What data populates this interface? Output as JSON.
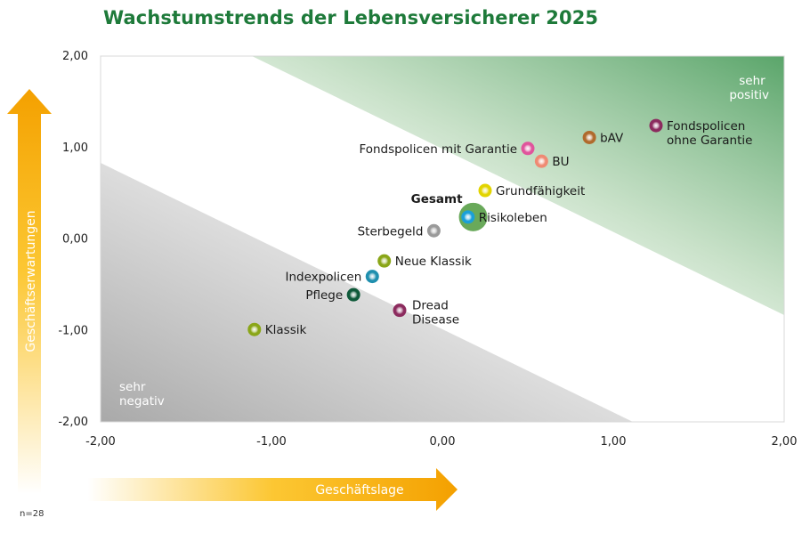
{
  "title": "Wachstumstrends der Lebensversicherer 2025",
  "footnote": "n=28",
  "chart_data": {
    "type": "scatter",
    "title": "Wachstumstrends der Lebensversicherer 2025",
    "xlabel": "Geschäftslage",
    "ylabel": "Geschäftserwartungen",
    "xlim": [
      -2,
      2
    ],
    "ylim": [
      -2,
      2
    ],
    "x_ticks": [
      "-2,00",
      "-1,00",
      "0,00",
      "1,00",
      "2,00"
    ],
    "y_ticks": [
      "2,00",
      "1,00",
      "0,00",
      "-1,00",
      "-2,00"
    ],
    "corner_top_right": [
      "sehr",
      "positiv"
    ],
    "corner_bottom_left": [
      "sehr",
      "negativ"
    ],
    "grid": false,
    "points": [
      {
        "label": [
          "Fondspolicen",
          "ohne Garantie"
        ],
        "x": 1.25,
        "y": 1.24,
        "color": "#8c2b5e",
        "anchor": "right"
      },
      {
        "label": [
          "bAV"
        ],
        "x": 0.86,
        "y": 1.11,
        "color": "#b06a2c",
        "anchor": "right"
      },
      {
        "label": [
          "Fondspolicen mit Garantie"
        ],
        "x": 0.5,
        "y": 0.99,
        "color": "#e0549c",
        "anchor": "left"
      },
      {
        "label": [
          "BU"
        ],
        "x": 0.58,
        "y": 0.85,
        "color": "#ef8a73",
        "anchor": "right"
      },
      {
        "label": [
          "Grundfähigkeit"
        ],
        "x": 0.25,
        "y": 0.53,
        "color": "#e2d400",
        "anchor": "right"
      },
      {
        "label": [
          "Risikoleben"
        ],
        "x": 0.15,
        "y": 0.24,
        "color": "#1aa0d8",
        "anchor": "right"
      },
      {
        "label": [
          "Gesamt"
        ],
        "x": 0.18,
        "y": 0.24,
        "color": "#4f9a3d",
        "anchor": "gesamt",
        "big": true
      },
      {
        "label": [
          "Sterbegeld"
        ],
        "x": -0.05,
        "y": 0.09,
        "color": "#9a9a9a",
        "anchor": "left"
      },
      {
        "label": [
          "Neue Klassik"
        ],
        "x": -0.34,
        "y": -0.24,
        "color": "#8aa618",
        "anchor": "right"
      },
      {
        "label": [
          "Indexpolicen"
        ],
        "x": -0.41,
        "y": -0.41,
        "color": "#1f8fae",
        "anchor": "left"
      },
      {
        "label": [
          "Pflege"
        ],
        "x": -0.52,
        "y": -0.61,
        "color": "#0f5a3a",
        "anchor": "left"
      },
      {
        "label": [
          "Dread",
          "Disease"
        ],
        "x": -0.25,
        "y": -0.78,
        "color": "#8c2b5e",
        "anchor": "below-right"
      },
      {
        "label": [
          "Klassik"
        ],
        "x": -1.1,
        "y": -0.99,
        "color": "#8aa618",
        "anchor": "right"
      }
    ]
  }
}
